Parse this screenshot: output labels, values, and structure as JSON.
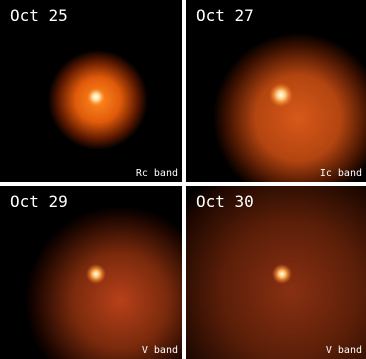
{
  "panels": [
    {
      "date": "Oct 25",
      "band": "Rc band"
    },
    {
      "date": "Oct 27",
      "band": "Ic band"
    },
    {
      "date": "Oct 29",
      "band": "V band"
    },
    {
      "date": "Oct 30",
      "band": "V band"
    }
  ]
}
